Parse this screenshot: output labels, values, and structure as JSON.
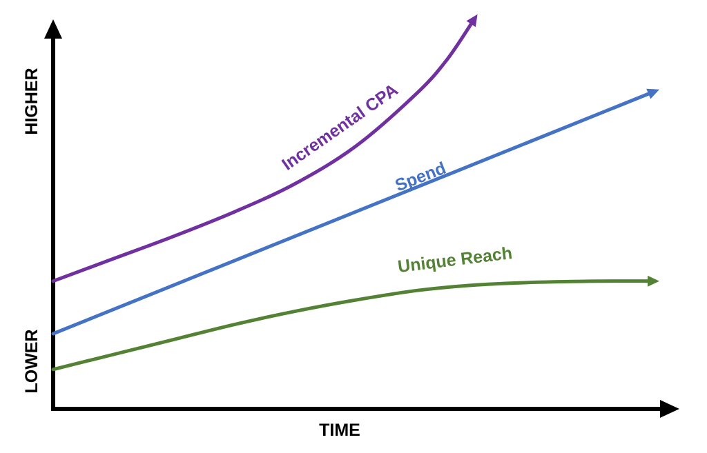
{
  "chart_data": {
    "type": "line",
    "title": "",
    "xlabel": "TIME",
    "ylabel_high": "HIGHER",
    "ylabel_low": "LOWER",
    "series": [
      {
        "name": "Incremental CPA",
        "color": "#7030A0",
        "x": [
          0,
          0.1,
          0.2,
          0.3,
          0.4,
          0.5,
          0.6,
          0.65,
          0.7
        ],
        "y": [
          0.34,
          0.4,
          0.46,
          0.525,
          0.6,
          0.7,
          0.84,
          0.93,
          1.05
        ]
      },
      {
        "name": "Spend",
        "color": "#4472C4",
        "x": [
          0,
          1.0
        ],
        "y": [
          0.2,
          0.85
        ]
      },
      {
        "name": "Unique Reach",
        "color": "#548235",
        "x": [
          0,
          0.1,
          0.2,
          0.3,
          0.4,
          0.5,
          0.6,
          0.7,
          0.8,
          0.9,
          1.0
        ],
        "y": [
          0.105,
          0.145,
          0.185,
          0.225,
          0.26,
          0.29,
          0.315,
          0.33,
          0.337,
          0.34,
          0.34
        ]
      }
    ]
  }
}
